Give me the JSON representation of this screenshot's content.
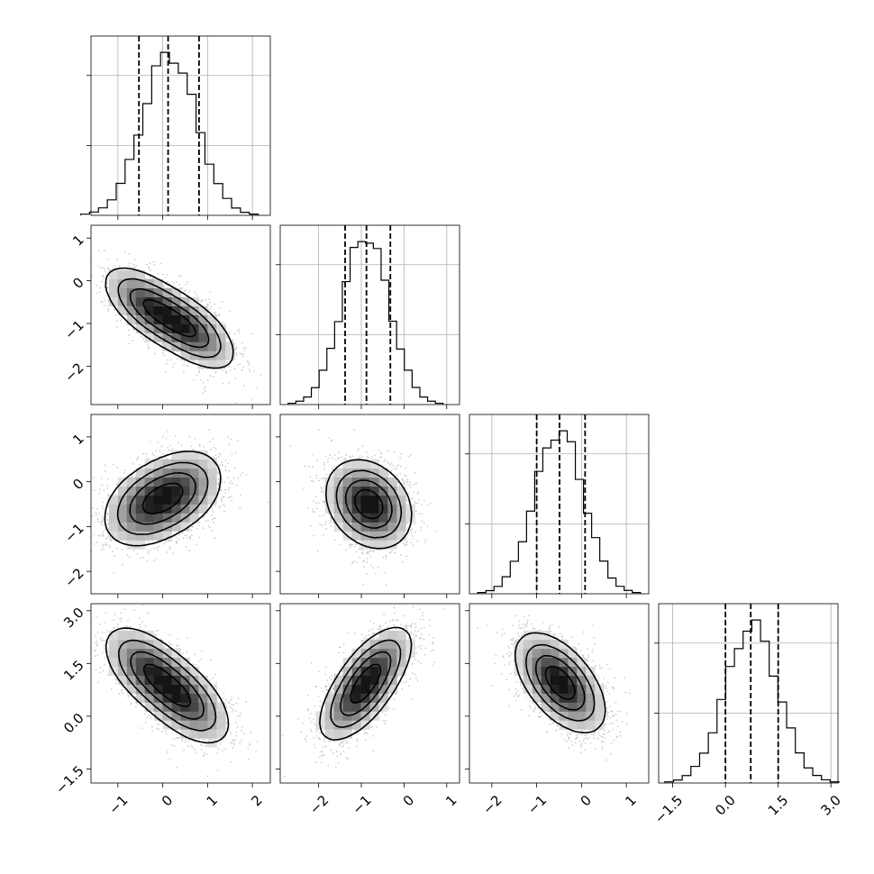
{
  "chart_data": {
    "type": "corner",
    "title": "",
    "parameters": [
      {
        "mean": 0.15,
        "sd": 0.6,
        "range": [
          -1.6,
          2.4
        ],
        "ticks": [
          -1,
          0,
          1,
          2
        ],
        "tick_labels": [
          "−1",
          "0",
          "1",
          "2"
        ],
        "quantiles": [
          -0.53,
          0.12,
          0.81
        ]
      },
      {
        "mean": -0.9,
        "sd": 0.55,
        "range": [
          -2.9,
          1.3
        ],
        "ticks": [
          -2,
          -1,
          0,
          1
        ],
        "tick_labels": [
          "−2",
          "−1",
          "0",
          "1"
        ],
        "quantiles": [
          -1.38,
          -0.88,
          -0.32
        ]
      },
      {
        "mean": -0.5,
        "sd": 0.55,
        "range": [
          -2.5,
          1.5
        ],
        "ticks": [
          -2,
          -1,
          0,
          1
        ],
        "tick_labels": [
          "−2",
          "−1",
          "0",
          "1"
        ],
        "quantiles": [
          -1.0,
          -0.49,
          0.08
        ]
      },
      {
        "mean": 0.75,
        "sd": 0.75,
        "range": [
          -1.9,
          3.2
        ],
        "ticks": [
          -1.5,
          0.0,
          1.5,
          3.0
        ],
        "tick_labels": [
          "−1.5",
          "0.0",
          "1.5",
          "3.0"
        ],
        "quantiles": [
          0.0,
          0.72,
          1.5
        ]
      }
    ],
    "pairs": [
      {
        "row": 1,
        "col": 0,
        "correlation": -0.6,
        "modes": [
          [
            -0.3,
            -0.6
          ],
          [
            0.6,
            -1.15
          ]
        ]
      },
      {
        "row": 2,
        "col": 0,
        "correlation": 0.3,
        "modes": [
          [
            -0.35,
            -0.55
          ],
          [
            0.35,
            -0.2
          ]
        ]
      },
      {
        "row": 2,
        "col": 1,
        "correlation": -0.2,
        "modes": [
          [
            -0.95,
            -0.4
          ],
          [
            -0.7,
            -0.6
          ]
        ]
      },
      {
        "row": 3,
        "col": 0,
        "correlation": -0.55,
        "modes": [
          [
            -0.3,
            1.3
          ],
          [
            0.5,
            0.45
          ]
        ]
      },
      {
        "row": 3,
        "col": 1,
        "correlation": 0.6,
        "modes": [
          [
            -0.7,
            1.35
          ],
          [
            -1.1,
            0.5
          ]
        ]
      },
      {
        "row": 3,
        "col": 2,
        "correlation": -0.5,
        "modes": [
          [
            -0.6,
            1.2
          ],
          [
            -0.35,
            0.7
          ]
        ]
      }
    ],
    "grid": true,
    "contour_levels": [
      0.12,
      0.3,
      0.55,
      0.82
    ],
    "colors": {
      "line": "#000000",
      "grid": "#b0b0b0",
      "points": "#555555"
    }
  }
}
